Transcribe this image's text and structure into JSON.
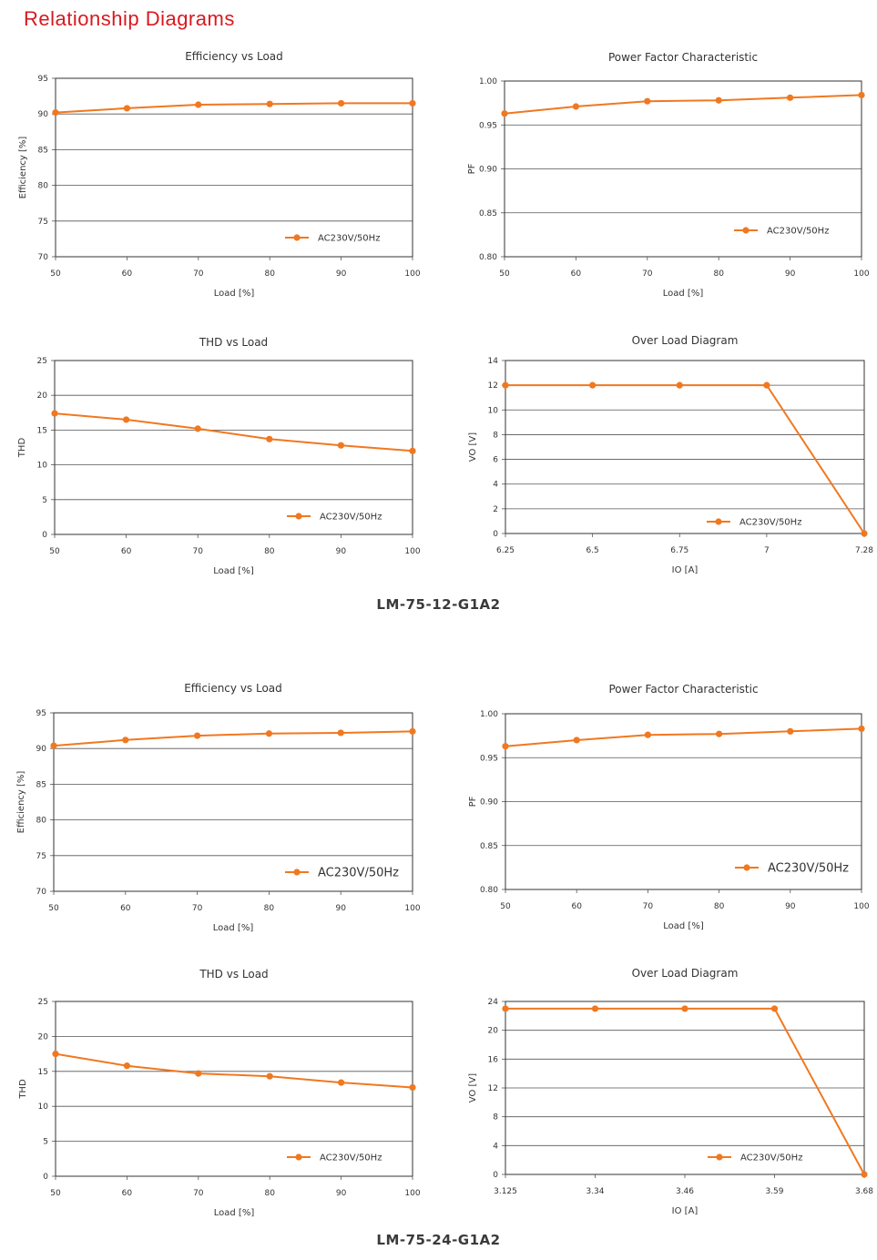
{
  "page": {
    "title": "Relationship Diagrams",
    "sections": [
      "LM-75-12-G1A2",
      "LM-75-24-G1A2"
    ]
  },
  "colors": {
    "series": "#f07820",
    "title": "#d7191f",
    "grid": "#555555"
  },
  "chart_data": [
    {
      "type": "line",
      "section": "LM-75-12-G1A2",
      "title": "Efficiency vs Load",
      "xlabel": "Load [%]",
      "ylabel": "Efficiency [%]",
      "x": [
        50,
        60,
        70,
        80,
        90,
        100
      ],
      "xlim": [
        50,
        100
      ],
      "ylim": [
        70,
        95
      ],
      "yticks": [
        70,
        75,
        80,
        85,
        90,
        95
      ],
      "grid": "horizontal",
      "legend_position": "lower-right",
      "series": [
        {
          "name": "AC230V/50Hz",
          "values": [
            90.2,
            90.8,
            91.3,
            91.4,
            91.5,
            91.5
          ]
        }
      ]
    },
    {
      "type": "line",
      "section": "LM-75-12-G1A2",
      "title": "Power Factor Characteristic",
      "xlabel": "Load [%]",
      "ylabel": "PF",
      "x": [
        50,
        60,
        70,
        80,
        90,
        100
      ],
      "xlim": [
        50,
        100
      ],
      "ylim": [
        0.8,
        1.0
      ],
      "yticks": [
        "0.80",
        "0.85",
        "0.90",
        "0.95",
        "1.00"
      ],
      "grid": "horizontal",
      "legend_position": "lower-right",
      "series": [
        {
          "name": "AC230V/50Hz",
          "values": [
            0.963,
            0.971,
            0.977,
            0.978,
            0.981,
            0.984
          ]
        }
      ]
    },
    {
      "type": "line",
      "section": "LM-75-12-G1A2",
      "title": "THD vs Load",
      "xlabel": "Load [%]",
      "ylabel": "THD",
      "x": [
        50,
        60,
        70,
        80,
        90,
        100
      ],
      "xlim": [
        50,
        100
      ],
      "ylim": [
        0,
        25
      ],
      "yticks": [
        0,
        5,
        10,
        15,
        20,
        25
      ],
      "grid": "horizontal",
      "legend_position": "lower-right",
      "series": [
        {
          "name": "AC230V/50Hz",
          "values": [
            17.4,
            16.5,
            15.2,
            13.7,
            12.8,
            12.0
          ]
        }
      ]
    },
    {
      "type": "line",
      "section": "LM-75-12-G1A2",
      "title": "Over Load Diagram",
      "xlabel": "IO [A]",
      "ylabel": "VO [V]",
      "x": [
        6.25,
        6.5,
        6.75,
        7,
        7.28
      ],
      "xticks": [
        "6.25",
        "6.5",
        "6.75",
        "7",
        "7.28"
      ],
      "xlim": [
        6.25,
        7.28
      ],
      "ylim": [
        0,
        14
      ],
      "yticks": [
        0,
        2,
        4,
        6,
        8,
        10,
        12,
        14
      ],
      "grid": "horizontal",
      "legend_position": "lower-right",
      "series": [
        {
          "name": "AC230V/50Hz",
          "values": [
            12,
            12,
            12,
            12,
            0
          ]
        }
      ]
    },
    {
      "type": "line",
      "section": "LM-75-24-G1A2",
      "title": "Efficiency vs Load",
      "xlabel": "Load [%]",
      "ylabel": "Efficiency [%]",
      "x": [
        50,
        60,
        70,
        80,
        90,
        100
      ],
      "xlim": [
        50,
        100
      ],
      "ylim": [
        70,
        95
      ],
      "yticks": [
        70,
        75,
        80,
        85,
        90,
        95
      ],
      "grid": "horizontal",
      "legend_position": "lower-right",
      "series": [
        {
          "name": "AC230V/50Hz",
          "values": [
            90.4,
            91.2,
            91.8,
            92.1,
            92.2,
            92.4
          ]
        }
      ]
    },
    {
      "type": "line",
      "section": "LM-75-24-G1A2",
      "title": "Power Factor Characteristic",
      "xlabel": "Load [%]",
      "ylabel": "PF",
      "x": [
        50,
        60,
        70,
        80,
        90,
        100
      ],
      "xlim": [
        50,
        100
      ],
      "ylim": [
        0.8,
        1.0
      ],
      "yticks": [
        "0.80",
        "0.85",
        "0.90",
        "0.95",
        "1.00"
      ],
      "grid": "horizontal",
      "legend_position": "lower-right",
      "series": [
        {
          "name": "AC230V/50Hz",
          "values": [
            0.963,
            0.97,
            0.976,
            0.977,
            0.98,
            0.983
          ]
        }
      ]
    },
    {
      "type": "line",
      "section": "LM-75-24-G1A2",
      "title": "THD vs Load",
      "xlabel": "Load [%]",
      "ylabel": "THD",
      "x": [
        50,
        60,
        70,
        80,
        90,
        100
      ],
      "xlim": [
        50,
        100
      ],
      "ylim": [
        0,
        25
      ],
      "yticks": [
        0,
        5,
        10,
        15,
        20,
        25
      ],
      "grid": "horizontal",
      "legend_position": "lower-right",
      "series": [
        {
          "name": "AC230V/50Hz",
          "values": [
            17.5,
            15.8,
            14.7,
            14.3,
            13.4,
            12.7
          ]
        }
      ]
    },
    {
      "type": "line",
      "section": "LM-75-24-G1A2",
      "title": "Over Load Diagram",
      "xlabel": "IO [A]",
      "ylabel": "VO [V]",
      "x": [
        3.125,
        3.34,
        3.46,
        3.59,
        3.68
      ],
      "xticks": [
        "3.125",
        "3.34",
        "3.46",
        "3.59",
        "3.68"
      ],
      "xscale": "category",
      "xlim": [
        3.125,
        3.68
      ],
      "ylim": [
        0,
        24
      ],
      "yticks": [
        0,
        4,
        8,
        12,
        16,
        20,
        24
      ],
      "grid": "horizontal",
      "legend_position": "lower-right",
      "series": [
        {
          "name": "AC230V/50Hz",
          "values": [
            23,
            23,
            23,
            23,
            0
          ]
        }
      ]
    }
  ]
}
